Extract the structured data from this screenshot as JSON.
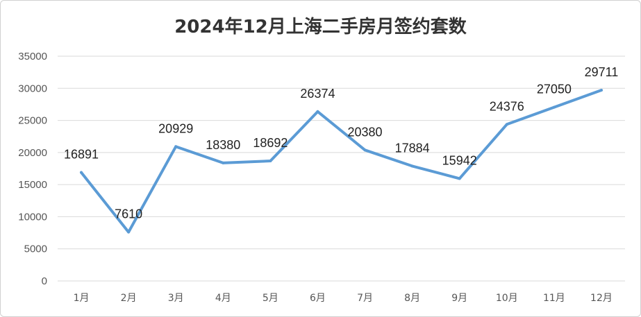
{
  "chart_data": {
    "type": "line",
    "title": "2024年12月上海二手房月签约套数",
    "categories": [
      "1月",
      "2月",
      "3月",
      "4月",
      "5月",
      "6月",
      "7月",
      "8月",
      "9月",
      "10月",
      "11月",
      "12月"
    ],
    "values": [
      16891,
      7610,
      20929,
      18380,
      18692,
      26374,
      20380,
      17884,
      15942,
      24376,
      27050,
      29711
    ],
    "xlabel": "",
    "ylabel": "",
    "ylim": [
      0,
      35000
    ],
    "yticks": [
      "0",
      "5000",
      "10000",
      "15000",
      "20000",
      "25000",
      "30000",
      "35000"
    ],
    "grid": true,
    "legend": "none",
    "line_color": "#5b9bd5",
    "grid_color": "#d9d9d9"
  }
}
